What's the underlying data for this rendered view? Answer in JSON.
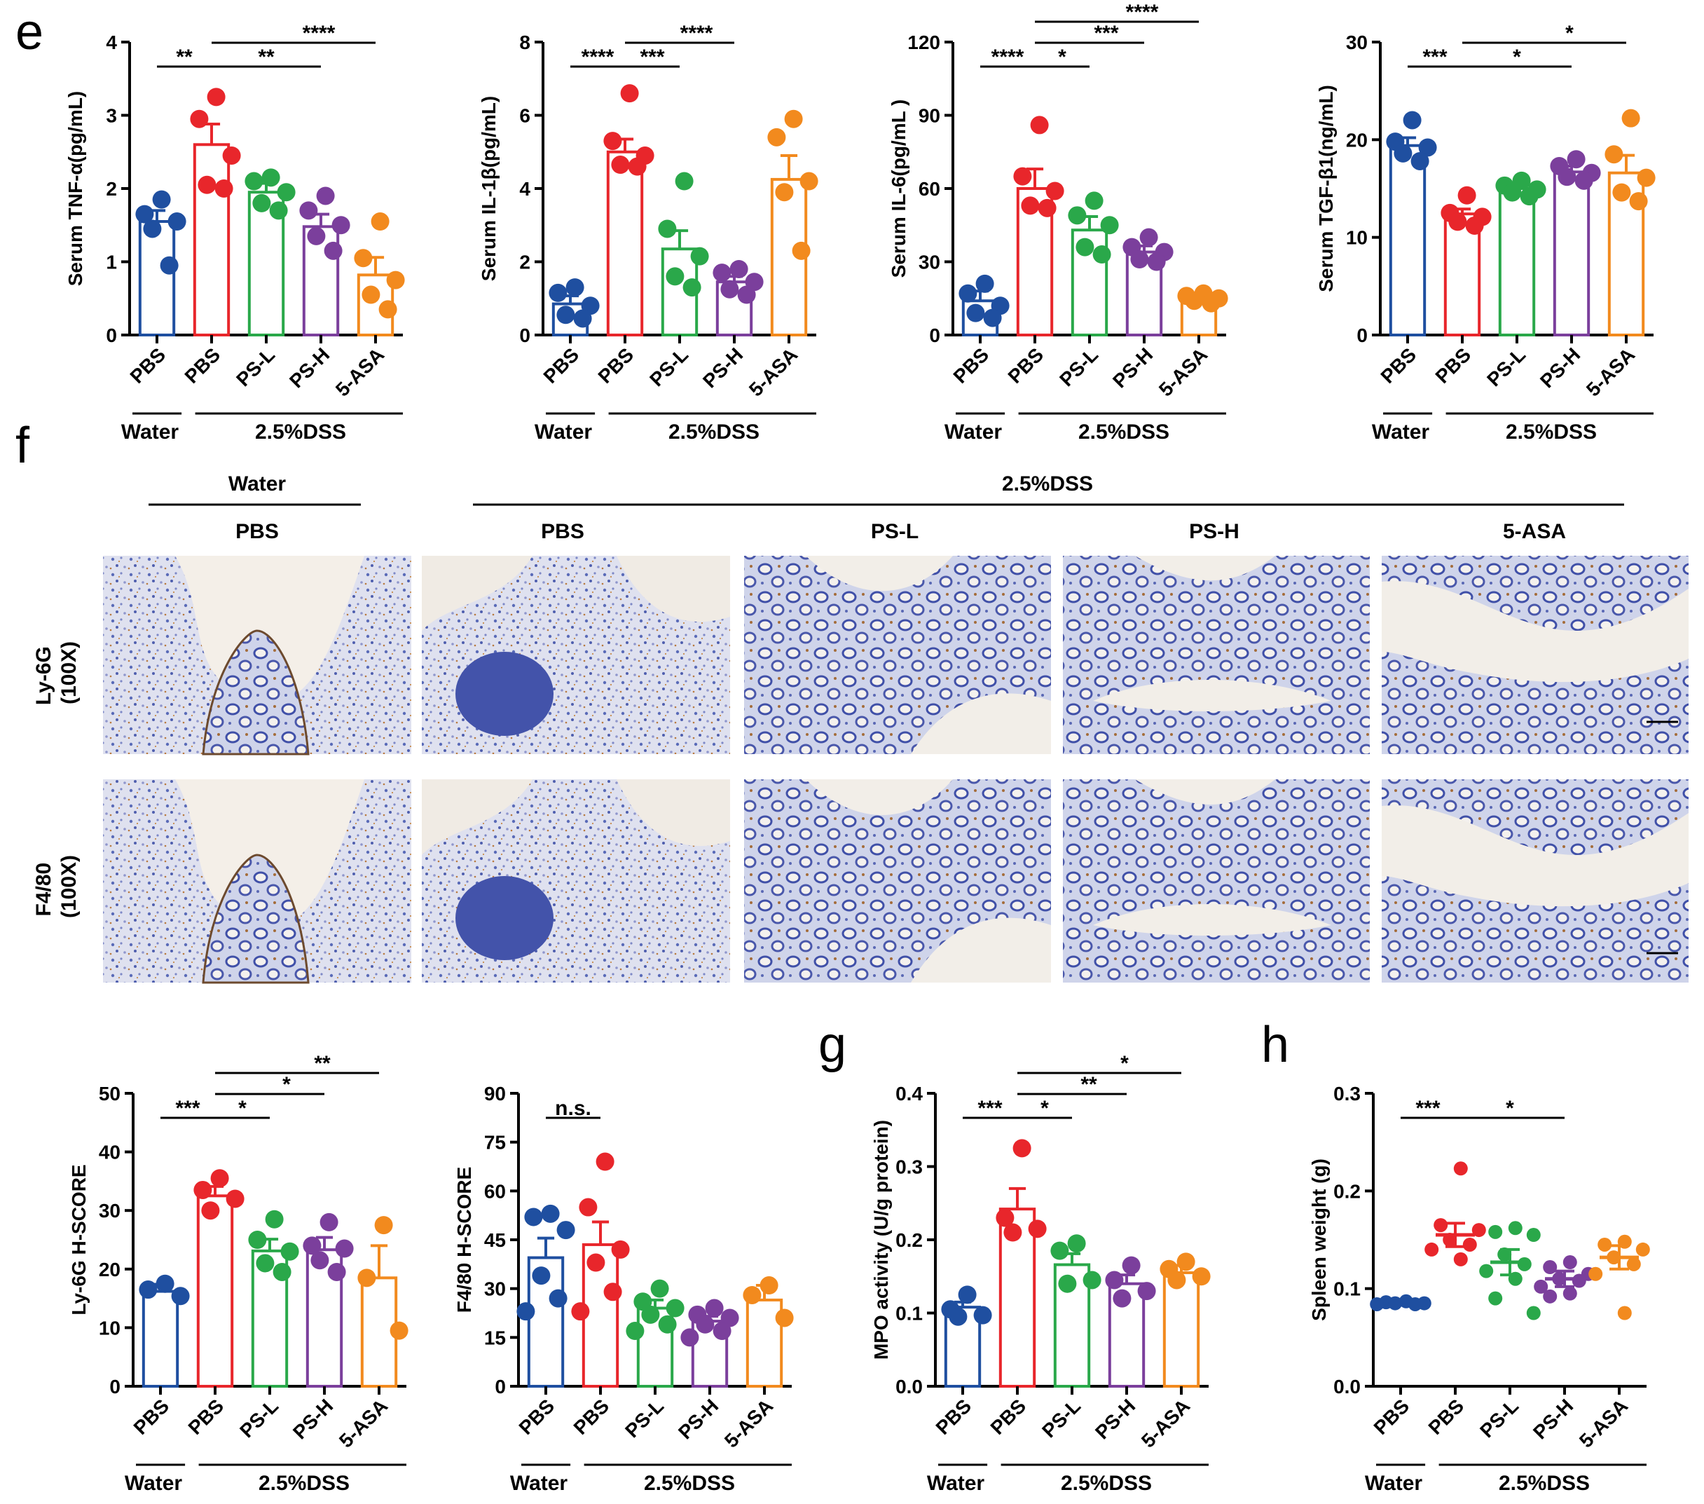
{
  "panels": {
    "e": "e",
    "f": "f",
    "g": "g",
    "h": "h"
  },
  "groups": [
    "PBS",
    "PBS",
    "PS-L",
    "PS-H",
    "5-ASA"
  ],
  "group_header": {
    "water": "Water",
    "dss": "2.5%DSS"
  },
  "colors": [
    "#1f4fa0",
    "#e8262b",
    "#2aa84a",
    "#7b3f9c",
    "#f28a1e"
  ],
  "histology": {
    "top_water": "Water",
    "top_dss": "2.5%DSS",
    "columns": [
      "PBS",
      "PBS",
      "PS-L",
      "PS-H",
      "5-ASA"
    ],
    "rows": [
      {
        "label": "Ly-6G",
        "mag": "(100X)"
      },
      {
        "label": "F4/80",
        "mag": "(100X)"
      }
    ]
  },
  "chart_data": [
    {
      "type": "bar",
      "title": "",
      "xlabel": "",
      "ylabel": "Serum TNF-α(pg/mL)",
      "categories": [
        "PBS",
        "PBS",
        "PS-L",
        "PS-H",
        "5-ASA"
      ],
      "ylim": [
        0,
        4
      ],
      "yticks": [
        "0",
        "1",
        "2",
        "3",
        "4"
      ],
      "values": [
        1.55,
        2.6,
        1.95,
        1.48,
        0.82
      ],
      "errors": [
        0.15,
        0.28,
        0.12,
        0.17,
        0.24
      ],
      "points": [
        [
          1.85,
          1.65,
          1.55,
          1.45,
          0.95
        ],
        [
          3.25,
          2.95,
          2.45,
          2.05,
          2.0
        ],
        [
          2.15,
          2.1,
          1.95,
          1.8,
          1.7
        ],
        [
          1.9,
          1.7,
          1.5,
          1.35,
          1.15
        ],
        [
          1.55,
          1.05,
          0.75,
          0.55,
          0.35
        ]
      ],
      "sig": [
        {
          "from": 0,
          "to": 1,
          "label": "**",
          "level": 1
        },
        {
          "from": 1,
          "to": 3,
          "label": "**",
          "level": 1
        },
        {
          "from": 1,
          "to": 4,
          "label": "****",
          "level": 2
        }
      ]
    },
    {
      "type": "bar",
      "title": "",
      "xlabel": "",
      "ylabel": "Serum IL-1β(pg/mL)",
      "categories": [
        "PBS",
        "PBS",
        "PS-L",
        "PS-H",
        "5-ASA"
      ],
      "ylim": [
        0,
        8
      ],
      "yticks": [
        "0",
        "2",
        "4",
        "6",
        "8"
      ],
      "values": [
        0.85,
        5.0,
        2.35,
        1.45,
        4.25
      ],
      "errors": [
        0.22,
        0.35,
        0.5,
        0.15,
        0.65
      ],
      "points": [
        [
          1.3,
          1.15,
          0.8,
          0.55,
          0.45
        ],
        [
          6.6,
          5.3,
          4.9,
          4.65,
          4.6
        ],
        [
          4.2,
          2.9,
          2.15,
          1.6,
          1.3
        ],
        [
          1.8,
          1.7,
          1.45,
          1.25,
          1.1
        ],
        [
          5.9,
          5.4,
          4.2,
          3.9,
          2.3
        ]
      ],
      "sig": [
        {
          "from": 0,
          "to": 1,
          "label": "****",
          "level": 1
        },
        {
          "from": 1,
          "to": 2,
          "label": "***",
          "level": 1
        },
        {
          "from": 1,
          "to": 3,
          "label": "****",
          "level": 2
        }
      ]
    },
    {
      "type": "bar",
      "title": "",
      "xlabel": "",
      "ylabel": "Serum IL-6(pg/mL )",
      "categories": [
        "PBS",
        "PBS",
        "PS-L",
        "PS-H",
        "5-ASA"
      ],
      "ylim": [
        0,
        120
      ],
      "yticks": [
        "0",
        "30",
        "60",
        "90",
        "120"
      ],
      "values": [
        14,
        60,
        43,
        34,
        15
      ],
      "errors": [
        4,
        8,
        5.5,
        2.5,
        1.5
      ],
      "points": [
        [
          21,
          17,
          12,
          9,
          7
        ],
        [
          86,
          65,
          59,
          53,
          52
        ],
        [
          55,
          49,
          45,
          36,
          33
        ],
        [
          40,
          36,
          34,
          31,
          30
        ],
        [
          17,
          16,
          15,
          14,
          13
        ]
      ],
      "sig": [
        {
          "from": 0,
          "to": 1,
          "label": "****",
          "level": 1
        },
        {
          "from": 1,
          "to": 2,
          "label": "*",
          "level": 1
        },
        {
          "from": 1,
          "to": 3,
          "label": "***",
          "level": 2
        },
        {
          "from": 1,
          "to": 4,
          "label": "****",
          "level": 3
        }
      ]
    },
    {
      "type": "bar",
      "title": "",
      "xlabel": "",
      "ylabel": "Serum TGF-β1(ng/mL)",
      "categories": [
        "PBS",
        "PBS",
        "PS-L",
        "PS-H",
        "5-ASA"
      ],
      "ylim": [
        0,
        30
      ],
      "yticks": [
        "0",
        "10",
        "20",
        "30"
      ],
      "values": [
        19.4,
        12.4,
        15.0,
        16.7,
        16.6
      ],
      "errors": [
        0.8,
        0.5,
        0.4,
        0.6,
        1.8
      ],
      "points": [
        [
          22,
          19.8,
          19.2,
          18.6,
          17.8
        ],
        [
          14.3,
          12.5,
          12.1,
          11.6,
          11.2
        ],
        [
          15.8,
          15.3,
          14.9,
          14.6,
          14.2
        ],
        [
          18,
          17.3,
          16.6,
          16.2,
          15.8
        ],
        [
          22.2,
          18.5,
          16.1,
          14.6,
          13.7
        ]
      ],
      "sig": [
        {
          "from": 0,
          "to": 1,
          "label": "***",
          "level": 1
        },
        {
          "from": 1,
          "to": 3,
          "label": "*",
          "level": 1
        },
        {
          "from": 1,
          "to": 4,
          "label": "*",
          "level": 2
        }
      ]
    },
    {
      "type": "bar",
      "title": "",
      "xlabel": "",
      "ylabel": "Ly-6G H-SCORE",
      "categories": [
        "PBS",
        "PBS",
        "PS-L",
        "PS-H",
        "5-ASA"
      ],
      "ylim": [
        0,
        50
      ],
      "yticks": [
        "0",
        "10",
        "20",
        "30",
        "40",
        "50"
      ],
      "values": [
        16.2,
        32.5,
        23.1,
        23.3,
        18.5
      ],
      "errors": [
        1.2,
        1.6,
        2.0,
        2.1,
        5.5
      ],
      "points": [
        [
          17.5,
          16.5,
          15.4
        ],
        [
          35.5,
          33.5,
          32,
          30
        ],
        [
          28.5,
          25,
          23,
          21,
          19.5
        ],
        [
          28,
          24,
          23.5,
          21.5,
          19.5
        ],
        [
          27.5,
          18.5,
          9.5
        ]
      ],
      "sig": [
        {
          "from": 0,
          "to": 1,
          "label": "***",
          "level": 1
        },
        {
          "from": 1,
          "to": 2,
          "label": "*",
          "level": 1
        },
        {
          "from": 1,
          "to": 3,
          "label": "*",
          "level": 2
        },
        {
          "from": 1,
          "to": 4,
          "label": "**",
          "level": 3
        }
      ]
    },
    {
      "type": "bar",
      "title": "",
      "xlabel": "",
      "ylabel": "F4/80 H-SCORE",
      "categories": [
        "PBS",
        "PBS",
        "PS-L",
        "PS-H",
        "5-ASA"
      ],
      "ylim": [
        0,
        90
      ],
      "yticks": [
        "0",
        "15",
        "30",
        "45",
        "60",
        "75",
        "90"
      ],
      "values": [
        39.5,
        43.5,
        24,
        20,
        26.5
      ],
      "errors": [
        6,
        7,
        2.5,
        1.5,
        4.5
      ],
      "points": [
        [
          53,
          52,
          48,
          34,
          27,
          23
        ],
        [
          69,
          55,
          42,
          38,
          29,
          23
        ],
        [
          30,
          26,
          24,
          22,
          19,
          17
        ],
        [
          24,
          22,
          21,
          19,
          17,
          15
        ],
        [
          31,
          28,
          21
        ]
      ],
      "sig": [
        {
          "from": 0,
          "to": 1,
          "label": "n.s.",
          "level": 1
        }
      ]
    },
    {
      "type": "bar",
      "title": "",
      "xlabel": "",
      "ylabel": "MPO activity (U/g protein)",
      "categories": [
        "PBS",
        "PBS",
        "PS-L",
        "PS-H",
        "5-ASA"
      ],
      "ylim": [
        0,
        0.4
      ],
      "yticks": [
        "0.0",
        "0.1",
        "0.2",
        "0.3",
        "0.4"
      ],
      "values": [
        0.108,
        0.242,
        0.166,
        0.14,
        0.155
      ],
      "errors": [
        0.007,
        0.028,
        0.015,
        0.012,
        0.01
      ],
      "points": [
        [
          0.125,
          0.105,
          0.097,
          0.095
        ],
        [
          0.325,
          0.23,
          0.215,
          0.21
        ],
        [
          0.195,
          0.185,
          0.145,
          0.14
        ],
        [
          0.165,
          0.145,
          0.13,
          0.12
        ],
        [
          0.17,
          0.16,
          0.15,
          0.145
        ]
      ],
      "sig": [
        {
          "from": 0,
          "to": 1,
          "label": "***",
          "level": 1
        },
        {
          "from": 1,
          "to": 2,
          "label": "*",
          "level": 1
        },
        {
          "from": 1,
          "to": 3,
          "label": "**",
          "level": 2
        },
        {
          "from": 1,
          "to": 4,
          "label": "*",
          "level": 3
        }
      ]
    },
    {
      "type": "scatter",
      "title": "",
      "xlabel": "",
      "ylabel": "Spleen weight (g)",
      "categories": [
        "PBS",
        "PBS",
        "PS-L",
        "PS-H",
        "5-ASA"
      ],
      "ylim": [
        0,
        0.3
      ],
      "yticks": [
        "0.0",
        "0.1",
        "0.2",
        "0.3"
      ],
      "values": [
        0.085,
        0.155,
        0.127,
        0.11,
        0.132
      ],
      "errors": [
        0.002,
        0.012,
        0.013,
        0.008,
        0.012
      ],
      "points": [
        [
          0.087,
          0.086,
          0.085,
          0.085,
          0.084,
          0.084
        ],
        [
          0.223,
          0.165,
          0.16,
          0.15,
          0.145,
          0.14,
          0.13
        ],
        [
          0.162,
          0.158,
          0.155,
          0.135,
          0.125,
          0.118,
          0.11,
          0.09,
          0.075
        ],
        [
          0.127,
          0.122,
          0.115,
          0.11,
          0.108,
          0.102,
          0.095,
          0.092
        ],
        [
          0.148,
          0.145,
          0.14,
          0.132,
          0.125,
          0.115,
          0.075
        ]
      ],
      "sig": [
        {
          "from": 0,
          "to": 1,
          "label": "***",
          "level": 1
        },
        {
          "from": 1,
          "to": 3,
          "label": "*",
          "level": 1
        }
      ]
    }
  ]
}
